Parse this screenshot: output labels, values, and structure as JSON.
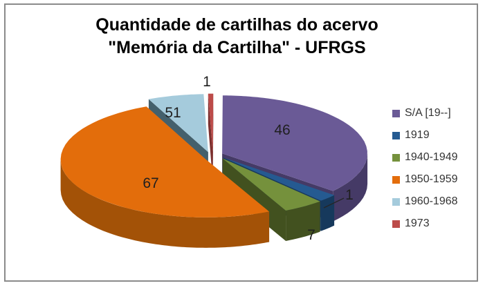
{
  "title": {
    "line1": "Quantidade de cartilhas do acervo",
    "line2": "\"Memória da Cartilha\" - UFRGS"
  },
  "chart_data": {
    "type": "pie",
    "style": "3d-exploded-pie",
    "title": "Quantidade de cartilhas do acervo \"Memória da Cartilha\" - UFRGS",
    "categories": [
      "S/A [19--]",
      "1919",
      "1940-1949",
      "1950-1959",
      "1960-1968",
      "1973"
    ],
    "values": [
      46,
      1,
      7,
      67,
      51,
      1
    ],
    "slice_colors": [
      "#6A5A96",
      "#255A91",
      "#75913C",
      "#E36D0B",
      "#A5CBDC",
      "#BC4B49"
    ],
    "slice_side_colors": [
      "#453A66",
      "#16395C",
      "#42511F",
      "#A35207",
      "#44606C",
      "#7C302F"
    ],
    "show_value_labels": true,
    "legend_position": "right",
    "start_angle": "top",
    "direction": "clockwise"
  },
  "colors": {
    "plot_border": "#8A8A8A",
    "title_text": "#000000",
    "label_text": "#1F1F1F",
    "legend_text": "#333333",
    "background": "#FFFFFF"
  }
}
